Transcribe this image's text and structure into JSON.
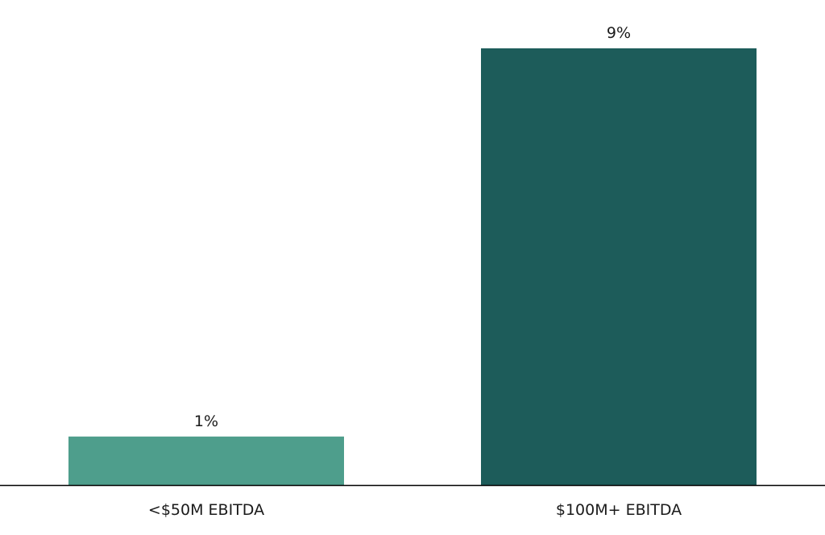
{
  "chart_data": {
    "type": "bar",
    "categories": [
      "<$50M EBITDA",
      "$100M+ EBITDA"
    ],
    "values": [
      1,
      9
    ],
    "data_labels": [
      "1%",
      "9%"
    ],
    "colors": [
      "#4e9e8c",
      "#1d5c5a"
    ],
    "axis_color": "#000000",
    "title": "",
    "xlabel": "",
    "ylabel": "",
    "ylim": [
      0,
      9
    ],
    "grid": false,
    "legend": "none"
  }
}
